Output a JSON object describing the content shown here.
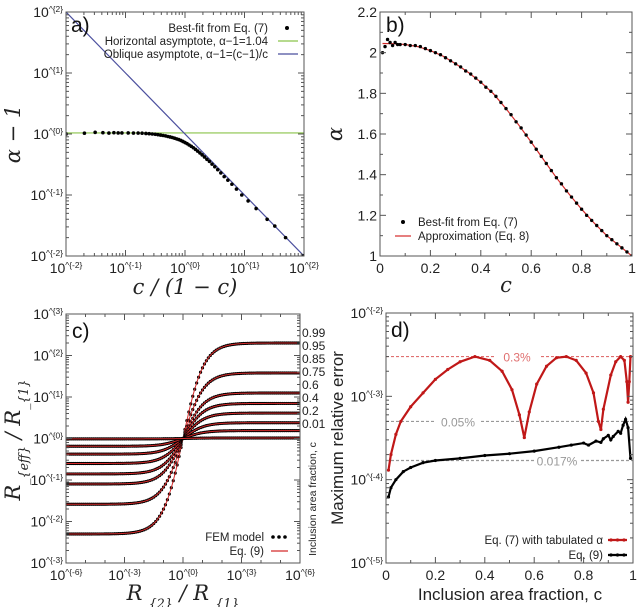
{
  "chart_data": [
    {
      "type": "scatter",
      "panel_label": "a)",
      "xlabel": "c / (1 − c)",
      "ylabel": "α − 1",
      "xscale": "log",
      "yscale": "log",
      "xlim": [
        0.01,
        100
      ],
      "ylim": [
        0.01,
        100
      ],
      "x_ticks": [
        {
          "value": 0.01,
          "label": "10^{-2}"
        },
        {
          "value": 0.1,
          "label": "10^{-1}"
        },
        {
          "value": 1,
          "label": "10^{0}"
        },
        {
          "value": 10,
          "label": "10^{1}"
        },
        {
          "value": 100,
          "label": "10^{2}"
        }
      ],
      "y_ticks": [
        {
          "value": 0.01,
          "label": "10^{-2}"
        },
        {
          "value": 0.1,
          "label": "10^{-1}"
        },
        {
          "value": 1,
          "label": "10^{0}"
        },
        {
          "value": 10,
          "label": "10^{1}"
        },
        {
          "value": 100,
          "label": "10^{2}"
        }
      ],
      "legend_position": "top-right",
      "series": [
        {
          "name": "Best-fit from Eq. (7)",
          "type": "scatter",
          "color": "#000000",
          "x": [
            0.0101,
            0.0204,
            0.0309,
            0.0417,
            0.0526,
            0.0638,
            0.0753,
            0.087,
            0.111,
            0.136,
            0.163,
            0.19,
            0.22,
            0.25,
            0.282,
            0.316,
            0.351,
            0.389,
            0.429,
            0.471,
            0.515,
            0.5625,
            0.613,
            0.667,
            0.724,
            0.786,
            0.852,
            0.923,
            1.0,
            1.083,
            1.174,
            1.273,
            1.381,
            1.5,
            1.632,
            1.778,
            1.941,
            2.125,
            2.333,
            2.571,
            2.846,
            3.167,
            3.545,
            4.0,
            4.556,
            5.25,
            6.143,
            7.33,
            9.0,
            11.5,
            15.67,
            24.0,
            32.3,
            49.0,
            99.0
          ],
          "y": [
            1.0,
            1.03,
            1.065,
            1.05,
            1.035,
            1.05,
            1.04,
            1.04,
            1.04,
            1.035,
            1.035,
            1.03,
            1.02,
            1.01,
            1.0,
            0.99,
            0.975,
            0.96,
            0.945,
            0.93,
            0.91,
            0.895,
            0.875,
            0.855,
            0.83,
            0.81,
            0.785,
            0.755,
            0.725,
            0.695,
            0.66,
            0.63,
            0.595,
            0.56,
            0.525,
            0.49,
            0.455,
            0.42,
            0.385,
            0.355,
            0.32,
            0.29,
            0.26,
            0.23,
            0.2,
            0.175,
            0.15,
            0.125,
            0.1,
            0.08,
            0.06,
            0.04,
            0.031,
            0.02,
            0.0101
          ]
        },
        {
          "name": "Horizontal asymptote, α−1=1.04",
          "type": "hline",
          "color": "#8bc34a",
          "y": 1.04
        },
        {
          "name": "Oblique asymptote, α−1=(c−1)/c",
          "type": "line",
          "color": "#4b4f9e",
          "x": [
            0.01,
            100
          ],
          "y": [
            100,
            0.01
          ]
        }
      ]
    },
    {
      "type": "scatter",
      "panel_label": "b)",
      "xlabel": "c",
      "ylabel": "α",
      "xscale": "linear",
      "yscale": "linear",
      "xlim": [
        0,
        1
      ],
      "ylim": [
        1,
        2.2
      ],
      "x_ticks": [
        {
          "value": 0,
          "label": "0"
        },
        {
          "value": 0.2,
          "label": "0.2"
        },
        {
          "value": 0.4,
          "label": "0.4"
        },
        {
          "value": 0.6,
          "label": "0.6"
        },
        {
          "value": 0.8,
          "label": "0.8"
        },
        {
          "value": 1,
          "label": "1"
        }
      ],
      "y_ticks": [
        {
          "value": 1,
          "label": "1"
        },
        {
          "value": 1.2,
          "label": "1.2"
        },
        {
          "value": 1.4,
          "label": "1.4"
        },
        {
          "value": 1.6,
          "label": "1.6"
        },
        {
          "value": 1.8,
          "label": "1.8"
        },
        {
          "value": 2,
          "label": "2"
        },
        {
          "value": 2.2,
          "label": "2.2"
        }
      ],
      "legend_position": "bottom-left",
      "series": [
        {
          "name": "Best-fit from Eq. (7)",
          "type": "scatter",
          "color": "#000000",
          "x": [
            0.01,
            0.02,
            0.03,
            0.04,
            0.05,
            0.06,
            0.07,
            0.08,
            0.1,
            0.12,
            0.14,
            0.16,
            0.18,
            0.2,
            0.22,
            0.24,
            0.26,
            0.28,
            0.3,
            0.32,
            0.34,
            0.36,
            0.38,
            0.4,
            0.42,
            0.44,
            0.46,
            0.48,
            0.5,
            0.52,
            0.54,
            0.56,
            0.58,
            0.6,
            0.62,
            0.64,
            0.66,
            0.68,
            0.7,
            0.72,
            0.74,
            0.76,
            0.78,
            0.8,
            0.82,
            0.84,
            0.86,
            0.88,
            0.9,
            0.92,
            0.94,
            0.96,
            0.98,
            1.0
          ],
          "y": [
            2.0,
            2.03,
            2.065,
            2.05,
            2.035,
            2.05,
            2.04,
            2.04,
            2.04,
            2.035,
            2.035,
            2.03,
            2.02,
            2.01,
            2.0,
            1.99,
            1.975,
            1.96,
            1.945,
            1.93,
            1.91,
            1.895,
            1.875,
            1.855,
            1.83,
            1.81,
            1.785,
            1.755,
            1.725,
            1.695,
            1.66,
            1.63,
            1.595,
            1.56,
            1.525,
            1.49,
            1.455,
            1.42,
            1.385,
            1.355,
            1.32,
            1.29,
            1.26,
            1.23,
            1.2,
            1.175,
            1.15,
            1.125,
            1.1,
            1.08,
            1.06,
            1.04,
            1.02,
            1.0
          ]
        },
        {
          "name": "Approximation (Eq. 8)",
          "type": "line",
          "color": "#d42a2a",
          "x": [
            0.01,
            0.05,
            0.1,
            0.15,
            0.2,
            0.25,
            0.3,
            0.35,
            0.4,
            0.45,
            0.5,
            0.55,
            0.6,
            0.65,
            0.7,
            0.75,
            0.8,
            0.85,
            0.9,
            0.95,
            1.0
          ],
          "y": [
            2.045,
            2.044,
            2.04,
            2.03,
            2.01,
            1.983,
            1.945,
            1.903,
            1.855,
            1.798,
            1.725,
            1.645,
            1.56,
            1.472,
            1.385,
            1.305,
            1.23,
            1.162,
            1.1,
            1.05,
            1.0
          ]
        }
      ]
    },
    {
      "type": "line",
      "panel_label": "c)",
      "xlabel": "R_{2} / R_{1}",
      "ylabel": "R_{eff} / R_{1}",
      "right_label": "Inclusion area fraction, c",
      "xscale": "log",
      "yscale": "log",
      "xlim": [
        1e-06,
        1000000.0
      ],
      "ylim": [
        0.001,
        1000.0
      ],
      "x_ticks": [
        {
          "value": 1e-06,
          "label": "10^{-6}"
        },
        {
          "value": 0.001,
          "label": "10^{-3}"
        },
        {
          "value": 1,
          "label": "10^{0}"
        },
        {
          "value": 1000.0,
          "label": "10^{3}"
        },
        {
          "value": 1000000.0,
          "label": "10^{6}"
        }
      ],
      "y_ticks": [
        {
          "value": 0.001,
          "label": "10^{-3}"
        },
        {
          "value": 0.01,
          "label": "10^{-2}"
        },
        {
          "value": 0.1,
          "label": "10^{-1}"
        },
        {
          "value": 1,
          "label": "10^{0}"
        },
        {
          "value": 10,
          "label": "10^{1}"
        },
        {
          "value": 100,
          "label": "10^{2}"
        },
        {
          "value": 1000,
          "label": "10^{3}"
        }
      ],
      "legend_position": "bottom-right",
      "legend": [
        {
          "name": "FEM model",
          "type": "scatter",
          "color": "#000000"
        },
        {
          "name": "Eq. (9)",
          "type": "line",
          "color": "#d42a2a"
        }
      ],
      "series": [
        {
          "c": "0.99",
          "low": 0.005,
          "high": 200
        },
        {
          "c": "0.95",
          "low": 0.026,
          "high": 38
        },
        {
          "c": "0.85",
          "low": 0.08,
          "high": 12.5
        },
        {
          "c": "0.75",
          "low": 0.14,
          "high": 7.0
        },
        {
          "c": "0.6",
          "low": 0.25,
          "high": 4.1
        },
        {
          "c": "0.4",
          "low": 0.42,
          "high": 2.4
        },
        {
          "c": "0.2",
          "low": 0.65,
          "high": 1.55
        },
        {
          "c": "0.01",
          "low": 0.98,
          "high": 1.03
        }
      ]
    },
    {
      "type": "line",
      "panel_label": "d)",
      "xlabel": "Inclusion area fraction, c",
      "ylabel": "Maximum relative error",
      "xscale": "linear",
      "yscale": "log",
      "xlim": [
        0,
        1
      ],
      "ylim": [
        1e-05,
        0.01
      ],
      "x_ticks": [
        {
          "value": 0,
          "label": "0"
        },
        {
          "value": 0.2,
          "label": "0.2"
        },
        {
          "value": 0.4,
          "label": "0.4"
        },
        {
          "value": 0.6,
          "label": "0.6"
        },
        {
          "value": 0.8,
          "label": "0.8"
        },
        {
          "value": 1,
          "label": "1"
        }
      ],
      "y_ticks": [
        {
          "value": 1e-05,
          "label": "10^{-5}"
        },
        {
          "value": 0.0001,
          "label": "10^{-4}"
        },
        {
          "value": 0.001,
          "label": "10^{-3}"
        },
        {
          "value": 0.01,
          "label": "10^{-2}"
        }
      ],
      "legend_position": "bottom-right",
      "reference_lines": [
        {
          "y": 0.003,
          "label": "0.3%",
          "color": "#e07070"
        },
        {
          "y": 0.0005,
          "label": "0.05%",
          "color": "#999999"
        },
        {
          "y": 0.00017,
          "label": "0.017%",
          "color": "#999999"
        }
      ],
      "series": [
        {
          "name": "Eq. (7) with tabulated α",
          "color": "#c01818",
          "x": [
            0.01,
            0.02,
            0.04,
            0.06,
            0.1,
            0.15,
            0.2,
            0.25,
            0.3,
            0.36,
            0.42,
            0.47,
            0.51,
            0.54,
            0.56,
            0.58,
            0.61,
            0.65,
            0.69,
            0.73,
            0.77,
            0.81,
            0.84,
            0.86,
            0.87,
            0.88,
            0.91,
            0.93,
            0.95,
            0.965,
            0.975,
            0.98,
            0.985,
            0.99
          ],
          "y": [
            0.00013,
            0.0002,
            0.00035,
            0.0005,
            0.00075,
            0.0011,
            0.0016,
            0.0021,
            0.0026,
            0.003,
            0.0027,
            0.002,
            0.0012,
            0.0006,
            0.00032,
            0.00065,
            0.0014,
            0.0023,
            0.0029,
            0.003,
            0.0027,
            0.0019,
            0.0011,
            0.0005,
            0.0004,
            0.0007,
            0.0018,
            0.0026,
            0.003,
            0.0027,
            0.0015,
            0.00085,
            0.0015,
            0.003
          ]
        },
        {
          "name": "Eq. (9)",
          "color": "#000000",
          "x": [
            0.01,
            0.02,
            0.04,
            0.07,
            0.1,
            0.15,
            0.2,
            0.3,
            0.4,
            0.5,
            0.6,
            0.7,
            0.75,
            0.8,
            0.82,
            0.85,
            0.87,
            0.88,
            0.9,
            0.91,
            0.92,
            0.94,
            0.95,
            0.96,
            0.97,
            0.98,
            0.99
          ],
          "y": [
            6.2e-05,
            8e-05,
            0.0001,
            0.000125,
            0.00014,
            0.00016,
            0.00017,
            0.00018,
            0.000195,
            0.000205,
            0.00022,
            0.000245,
            0.00026,
            0.000275,
            0.00026,
            0.00029,
            0.00028,
            0.00031,
            0.00034,
            0.0003,
            0.00033,
            0.00038,
            0.00036,
            0.00045,
            0.00053,
            0.00042,
            0.00018
          ]
        }
      ]
    }
  ]
}
